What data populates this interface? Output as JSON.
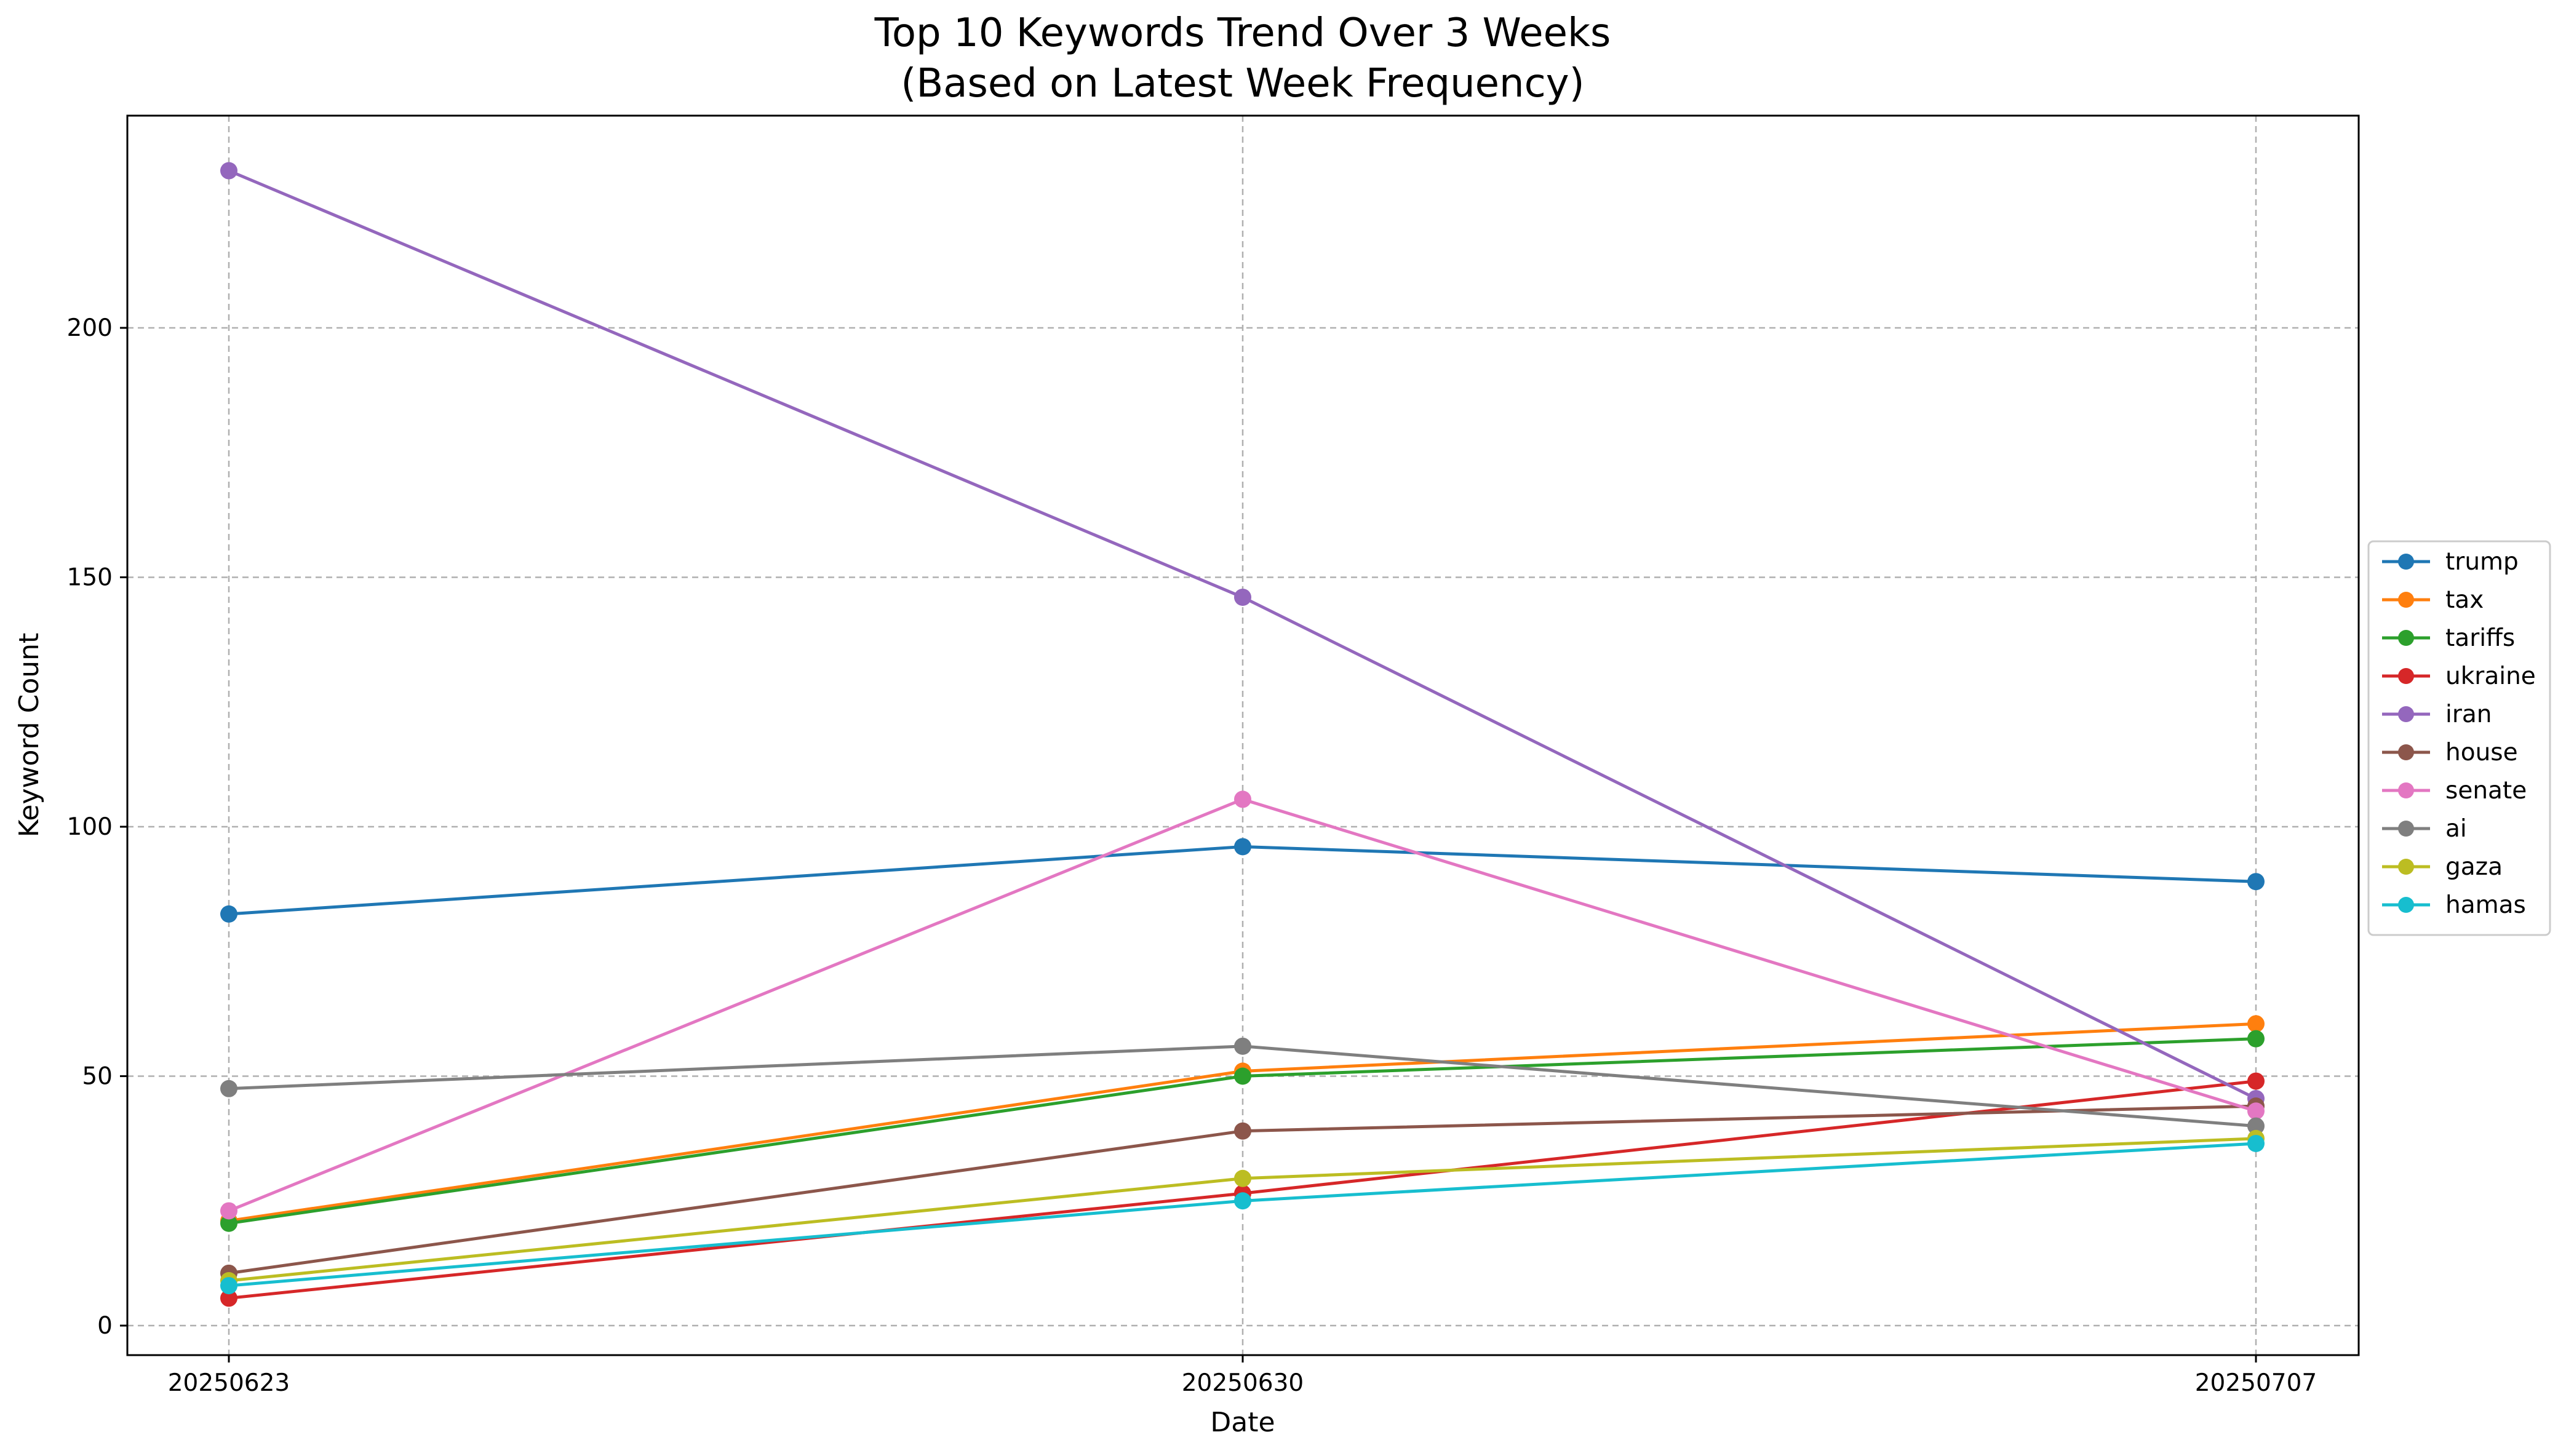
{
  "chart_data": {
    "type": "line",
    "title": "Top 10 Keywords Trend Over 3 Weeks",
    "subtitle": "(Based on Latest Week Frequency)",
    "xlabel": "Date",
    "ylabel": "Keyword Count",
    "categories": [
      "20250623",
      "20250630",
      "20250707"
    ],
    "ylim": [
      -6,
      243
    ],
    "yticks": [
      0,
      50,
      100,
      150,
      200
    ],
    "grid": true,
    "legend_position": "center-right",
    "series": [
      {
        "name": "trump",
        "color": "#1f77b4",
        "values": [
          82.5,
          96,
          89
        ]
      },
      {
        "name": "tax",
        "color": "#ff7f0e",
        "values": [
          21,
          51,
          60.5
        ]
      },
      {
        "name": "tariffs",
        "color": "#2ca02c",
        "values": [
          20.5,
          50,
          57.5
        ]
      },
      {
        "name": "ukraine",
        "color": "#d62728",
        "values": [
          5.5,
          26.5,
          49
        ]
      },
      {
        "name": "iran",
        "color": "#9467bd",
        "values": [
          231.5,
          146,
          45.5
        ]
      },
      {
        "name": "house",
        "color": "#8c564b",
        "values": [
          10.5,
          39,
          44
        ]
      },
      {
        "name": "senate",
        "color": "#e377c2",
        "values": [
          23,
          105.5,
          43
        ]
      },
      {
        "name": "ai",
        "color": "#7f7f7f",
        "values": [
          47.5,
          56,
          40
        ]
      },
      {
        "name": "gaza",
        "color": "#bcbd22",
        "values": [
          9,
          29.5,
          37.5
        ]
      },
      {
        "name": "hamas",
        "color": "#17becf",
        "values": [
          8,
          25,
          36.5
        ]
      }
    ]
  }
}
